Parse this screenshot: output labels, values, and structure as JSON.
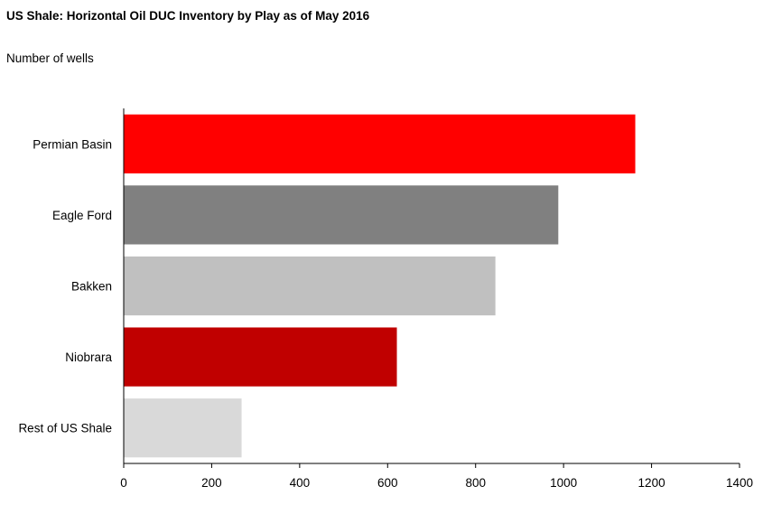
{
  "chart_data": {
    "type": "bar",
    "orientation": "horizontal",
    "title": "US Shale: Horizontal Oil DUC Inventory by Play as of May 2016",
    "subtitle": "Number of wells",
    "xlabel": "",
    "ylabel": "",
    "categories": [
      "Permian Basin",
      "Eagle Ford",
      "Bakken",
      "Niobrara",
      "Rest of US Shale"
    ],
    "values": [
      1163,
      988,
      845,
      621,
      268
    ],
    "colors": [
      "#ff0000",
      "#808080",
      "#c0c0c0",
      "#c00000",
      "#d9d9d9"
    ],
    "xlim": [
      0,
      1400
    ],
    "xticks": [
      0,
      200,
      400,
      600,
      800,
      1000,
      1200,
      1400
    ],
    "grid": false,
    "legend": "none"
  }
}
